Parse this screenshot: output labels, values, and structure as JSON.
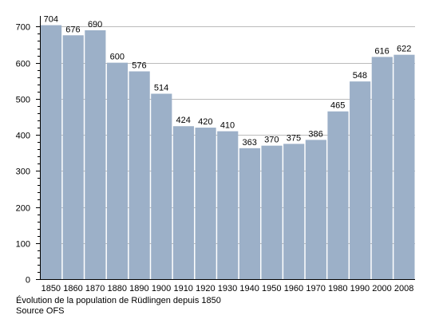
{
  "chart_data": {
    "type": "bar",
    "categories": [
      "1850",
      "1860",
      "1870",
      "1880",
      "1890",
      "1900",
      "1910",
      "1920",
      "1930",
      "1940",
      "1950",
      "1960",
      "1970",
      "1980",
      "1990",
      "2000",
      "2008"
    ],
    "values": [
      704,
      676,
      690,
      600,
      576,
      514,
      424,
      420,
      410,
      363,
      370,
      375,
      386,
      465,
      548,
      616,
      622
    ],
    "ylim": [
      0,
      700
    ],
    "y_ticks": [
      0,
      100,
      200,
      300,
      400,
      500,
      600,
      700
    ],
    "grid": true,
    "bar_color": "#9cb0c8",
    "grid_color": "#bbbbbb"
  },
  "caption": {
    "line1": "Évolution de la population de Rüdlingen depuis 1850",
    "line2": "Source OFS"
  }
}
